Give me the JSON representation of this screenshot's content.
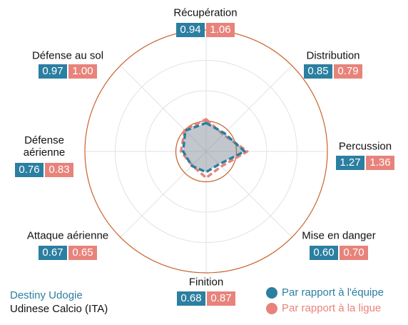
{
  "chart_data": {
    "type": "radar",
    "categories": [
      "Récupération",
      "Distribution",
      "Percussion",
      "Mise en danger",
      "Finition",
      "Attaque aérienne",
      "Défense aérienne",
      "Défense au sol"
    ],
    "series": [
      {
        "name": "Par rapport à l'équipe",
        "color": "#2b7fa0",
        "values": [
          0.94,
          0.85,
          1.27,
          0.6,
          0.68,
          0.67,
          0.76,
          0.97
        ],
        "value_labels": [
          "0.94",
          "0.85",
          "1.27",
          "0.60",
          "0.68",
          "0.67",
          "0.76",
          "0.97"
        ]
      },
      {
        "name": "Par rapport à la ligue",
        "color": "#e8837b",
        "values": [
          1.06,
          0.79,
          1.36,
          0.7,
          0.87,
          0.65,
          0.83,
          1.0
        ],
        "value_labels": [
          "1.06",
          "0.79",
          "1.36",
          "0.70",
          "0.87",
          "0.65",
          "0.83",
          "1.00"
        ]
      }
    ],
    "player": "Destiny Udogie",
    "team": "Udinese Calcio (ITA)",
    "rlim": [
      0,
      4
    ],
    "rticks": [
      1,
      2,
      3
    ],
    "reference": 1,
    "grid": true,
    "legend": "lower right"
  }
}
